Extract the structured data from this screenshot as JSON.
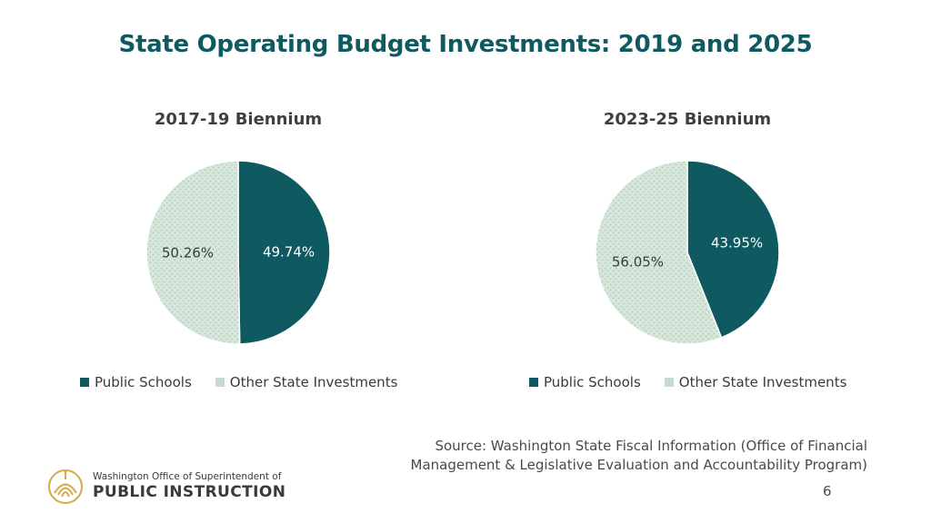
{
  "title": "State Operating Budget Investments: 2019 and 2025",
  "chart_data": [
    {
      "type": "pie",
      "title": "2017-19 Biennium",
      "categories": [
        "Public Schools",
        "Other State Investments"
      ],
      "values": [
        49.74,
        50.26
      ],
      "labels": [
        "49.74%",
        "50.26%"
      ],
      "legend": "bottom"
    },
    {
      "type": "pie",
      "title": "2023-25 Biennium",
      "categories": [
        "Public Schools",
        "Other State Investments"
      ],
      "values": [
        43.95,
        56.05
      ],
      "labels": [
        "43.95%",
        "56.05%"
      ],
      "legend": "bottom"
    }
  ],
  "colors": {
    "public_schools": "#0f5a60",
    "other": "#c4dccd",
    "title": "#0f5a60"
  },
  "source": {
    "line1": "Source: Washington State Fiscal Information (Office of Financial",
    "line2": "Management & Legislative Evaluation and Accountability Program)"
  },
  "page_number": "6",
  "logo": {
    "line1": "Washington Office of Superintendent of",
    "line2": "PUBLIC INSTRUCTION",
    "icon": "ospi-logo-icon"
  }
}
